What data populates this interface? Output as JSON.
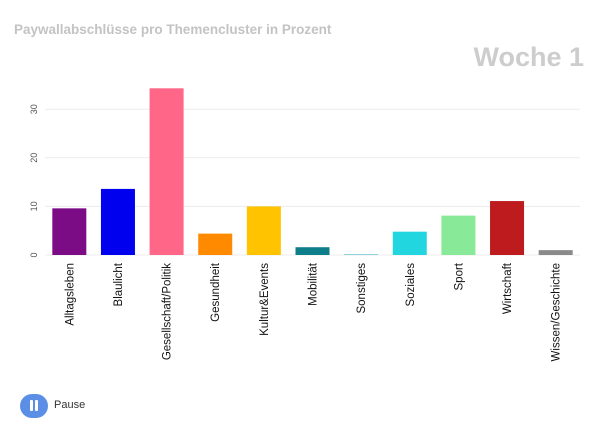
{
  "header": {
    "title": "Paywallabschlüsse pro Themencluster in Prozent",
    "frame_label": "Woche 1"
  },
  "controls": {
    "pause_label": "Pause",
    "pause_icon": "pause-icon"
  },
  "chart_data": {
    "type": "bar",
    "title": "Paywallabschlüsse pro Themencluster in Prozent",
    "xlabel": "",
    "ylabel": "",
    "ylim": [
      0,
      36
    ],
    "yticks": [
      0,
      10,
      20,
      30
    ],
    "grid": true,
    "categories": [
      "Alltagsleben",
      "Blaulicht",
      "Gesellschaft/Politik",
      "Gesundheit",
      "Kultur&Events",
      "Mobilität",
      "Sonstiges",
      "Soziales",
      "Sport",
      "Wirtschaft",
      "Wissen/Geschichte"
    ],
    "values": [
      9.6,
      13.6,
      34.3,
      4.4,
      10.0,
      1.6,
      0.2,
      4.8,
      8.1,
      11.1,
      1.0
    ],
    "colors": [
      "#7b0c85",
      "#0000ee",
      "#ff6688",
      "#ff8a00",
      "#ffc300",
      "#0d7e8a",
      "#8ad3d8",
      "#22d6e0",
      "#88e998",
      "#be1b1f",
      "#8a8a8a"
    ]
  }
}
